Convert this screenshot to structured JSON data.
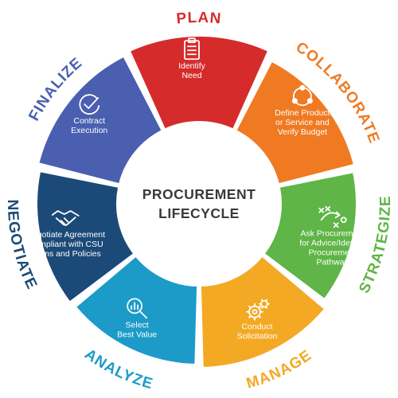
{
  "center": {
    "line1": "PROCUREMENT",
    "line2": "LIFECYCLE"
  },
  "segments": [
    {
      "id": "plan",
      "label": "PLAN",
      "color": "#d62b2b",
      "icon": "clipboard-icon",
      "desc": [
        "Identify",
        "Need"
      ]
    },
    {
      "id": "collaborate",
      "label": "COLLABORATE",
      "color": "#f07a22",
      "icon": "network-icon",
      "desc": [
        "Define Product",
        "or Service and",
        "Verify Budget"
      ]
    },
    {
      "id": "strategize",
      "label": "STRATEGIZE",
      "color": "#5fb547",
      "icon": "strategy-play-icon",
      "desc": [
        "Ask Procurement",
        "for Advice/Identify",
        "Procurement",
        "Pathway"
      ]
    },
    {
      "id": "manage",
      "label": "MANAGE",
      "color": "#f3a923",
      "icon": "gears-icon",
      "desc": [
        "Conduct",
        "Solicitation"
      ]
    },
    {
      "id": "analyze",
      "label": "ANALYZE",
      "color": "#1c9bc8",
      "icon": "magnifier-chart-icon",
      "desc": [
        "Select",
        "Best Value"
      ]
    },
    {
      "id": "negotiate",
      "label": "NEGOTIATE",
      "color": "#1c4a78",
      "icon": "handshake-icon",
      "desc": [
        "Negotiate Agreement",
        "Compliant with CSU",
        "Terms and Policies"
      ]
    },
    {
      "id": "finalize",
      "label": "FINALIZE",
      "color": "#4a5fb0",
      "icon": "checkmark-circle-icon",
      "desc": [
        "Contract",
        "Execution"
      ]
    }
  ]
}
